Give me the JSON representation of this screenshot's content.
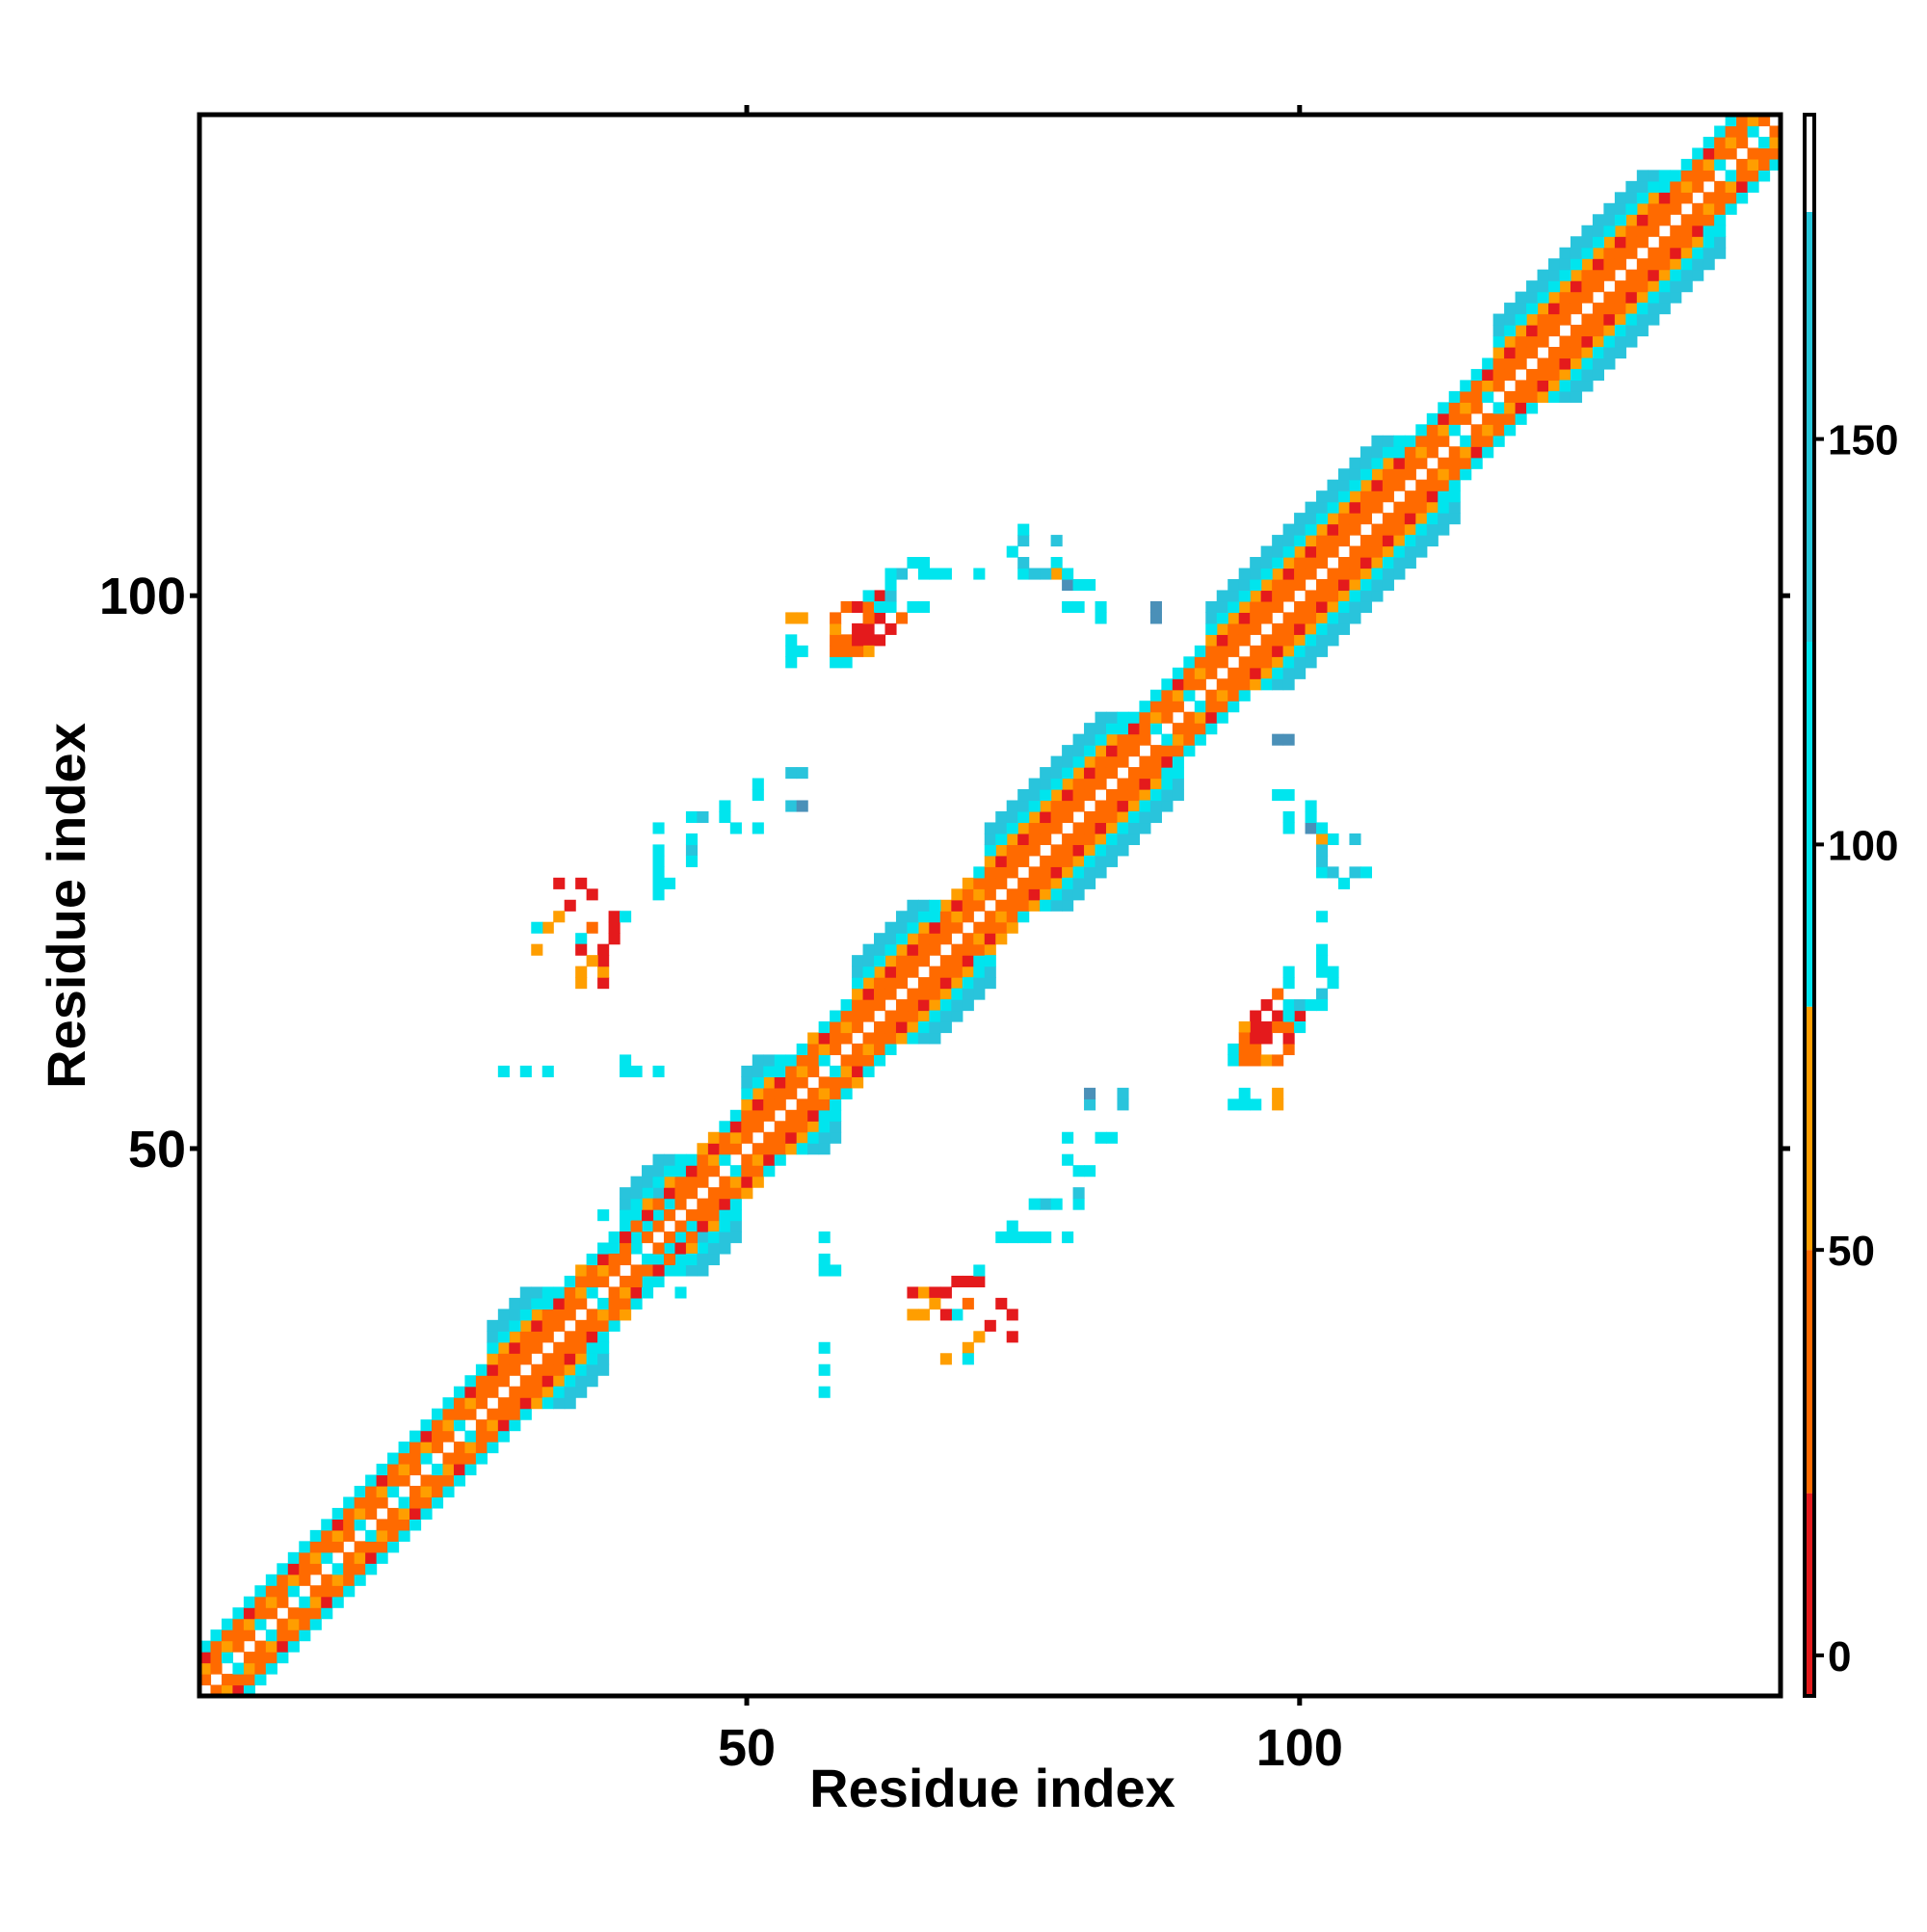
{
  "chart_data": {
    "type": "heatmap",
    "title": "",
    "xlabel": "Residue index",
    "ylabel": "Residue index",
    "xlim": [
      0.5,
      143.5
    ],
    "ylim": [
      0.5,
      143.5
    ],
    "x_ticks": [
      50,
      100
    ],
    "x_tick_labels": [
      "50",
      "100"
    ],
    "y_ticks": [
      50,
      100
    ],
    "y_tick_labels": [
      "50",
      "100"
    ],
    "grid": false,
    "legend": "colorbar-right",
    "colorbar": {
      "range": [
        -5,
        190
      ],
      "ticks": [
        0,
        50,
        100,
        150
      ],
      "tick_labels": [
        "0",
        "50",
        "100",
        "150"
      ],
      "bands": [
        {
          "from": -5,
          "to": 20,
          "color": "#e41a1c"
        },
        {
          "from": 20,
          "to": 50,
          "color": "#ff6a00"
        },
        {
          "from": 50,
          "to": 80,
          "color": "#ff9e00"
        },
        {
          "from": 80,
          "to": 125,
          "color": "#00e5ee"
        },
        {
          "from": 125,
          "to": 178,
          "color": "#26c6da"
        },
        {
          "from": 178,
          "to": 190,
          "color": "#ffffff"
        }
      ]
    },
    "colors": {
      "red": "#e41a1c",
      "orange": "#ff6a00",
      "amber": "#ff9e00",
      "cyan": "#00e5ee",
      "teal": "#29c4dc",
      "steel": "#4a90b8"
    },
    "diagonal": {
      "residue_range": [
        1,
        143
      ],
      "near_diagonal_offsets": [
        {
          "offset": 1,
          "color": "orange"
        },
        {
          "offset": 2,
          "color": "orange"
        },
        {
          "offset": 3,
          "color": "red"
        },
        {
          "offset": 4,
          "color": "amber"
        }
      ],
      "helix_segments": [
        {
          "start": 27,
          "end": 35
        },
        {
          "start": 39,
          "end": 47
        },
        {
          "start": 50,
          "end": 56
        },
        {
          "start": 60,
          "end": 70
        },
        {
          "start": 72,
          "end": 87
        },
        {
          "start": 92,
          "end": 112
        },
        {
          "start": 118,
          "end": 136
        }
      ]
    },
    "off_diagonal_contacts": [
      {
        "i": 33,
        "j": 74,
        "color": "red"
      },
      {
        "i": 35,
        "j": 74,
        "color": "red"
      },
      {
        "i": 36,
        "j": 73,
        "color": "red"
      },
      {
        "i": 34,
        "j": 72,
        "color": "red"
      },
      {
        "i": 33,
        "j": 71,
        "color": "amber"
      },
      {
        "i": 32,
        "j": 70,
        "color": "amber"
      },
      {
        "i": 36,
        "j": 70,
        "color": "orange"
      },
      {
        "i": 35,
        "j": 69,
        "color": "cyan"
      },
      {
        "i": 31,
        "j": 68,
        "color": "amber"
      },
      {
        "i": 31,
        "j": 70,
        "color": "cyan"
      },
      {
        "i": 35,
        "j": 68,
        "color": "red"
      },
      {
        "i": 42,
        "j": 79,
        "color": "cyan"
      },
      {
        "i": 42,
        "j": 76,
        "color": "cyan"
      },
      {
        "i": 43,
        "j": 74,
        "color": "cyan"
      },
      {
        "i": 45,
        "j": 80,
        "color": "cyan"
      },
      {
        "i": 46,
        "j": 80,
        "color": "teal"
      },
      {
        "i": 45,
        "j": 77,
        "color": "teal"
      },
      {
        "i": 49,
        "j": 79,
        "color": "cyan"
      },
      {
        "i": 48,
        "j": 81,
        "color": "cyan"
      },
      {
        "i": 54,
        "j": 81,
        "color": "teal"
      },
      {
        "i": 55,
        "j": 81,
        "color": "steel"
      },
      {
        "i": 28,
        "j": 57,
        "color": "cyan"
      },
      {
        "i": 30,
        "j": 57,
        "color": "cyan"
      },
      {
        "i": 32,
        "j": 57,
        "color": "cyan"
      },
      {
        "i": 59,
        "j": 99,
        "color": "orange"
      },
      {
        "i": 60,
        "j": 99,
        "color": "red"
      },
      {
        "i": 61,
        "j": 99,
        "color": "orange"
      },
      {
        "i": 62,
        "j": 100,
        "color": "red"
      },
      {
        "i": 63,
        "j": 99,
        "color": "cyan"
      },
      {
        "i": 64,
        "j": 98,
        "color": "orange"
      },
      {
        "i": 63,
        "j": 97,
        "color": "red"
      },
      {
        "i": 62,
        "j": 96,
        "color": "red"
      },
      {
        "i": 61,
        "j": 96,
        "color": "red"
      },
      {
        "i": 60,
        "j": 97,
        "color": "red"
      },
      {
        "i": 59,
        "j": 96,
        "color": "orange"
      },
      {
        "i": 61,
        "j": 95,
        "color": "amber"
      },
      {
        "i": 60,
        "j": 95,
        "color": "orange"
      },
      {
        "i": 59,
        "j": 94,
        "color": "cyan"
      },
      {
        "i": 55,
        "j": 98,
        "color": "amber"
      },
      {
        "i": 55,
        "j": 95,
        "color": "cyan"
      },
      {
        "i": 63,
        "j": 100,
        "color": "teal"
      },
      {
        "i": 65,
        "j": 99,
        "color": "cyan"
      },
      {
        "i": 66,
        "j": 99,
        "color": "cyan"
      },
      {
        "i": 64,
        "j": 102,
        "color": "teal"
      },
      {
        "i": 67,
        "j": 102,
        "color": "cyan"
      },
      {
        "i": 68,
        "j": 102,
        "color": "cyan"
      },
      {
        "i": 71,
        "j": 102,
        "color": "cyan"
      },
      {
        "i": 75,
        "j": 102,
        "color": "cyan"
      },
      {
        "i": 76,
        "j": 102,
        "color": "teal"
      },
      {
        "i": 75,
        "j": 105,
        "color": "teal"
      },
      {
        "i": 78,
        "j": 105,
        "color": "teal"
      },
      {
        "i": 78,
        "j": 103,
        "color": "cyan"
      },
      {
        "i": 78,
        "j": 102,
        "color": "amber"
      },
      {
        "i": 79,
        "j": 101,
        "color": "steel"
      },
      {
        "i": 80,
        "j": 101,
        "color": "cyan"
      },
      {
        "i": 81,
        "j": 101,
        "color": "cyan"
      },
      {
        "i": 79,
        "j": 99,
        "color": "cyan"
      },
      {
        "i": 80,
        "j": 99,
        "color": "cyan"
      },
      {
        "i": 82,
        "j": 99,
        "color": "cyan"
      },
      {
        "i": 82,
        "j": 98,
        "color": "cyan"
      },
      {
        "i": 87,
        "j": 98,
        "color": "steel"
      },
      {
        "i": 37,
        "j": 44,
        "color": "cyan"
      },
      {
        "i": 38,
        "j": 41,
        "color": "cyan"
      },
      {
        "i": 40,
        "j": 41,
        "color": "cyan"
      },
      {
        "i": 42,
        "j": 40,
        "color": "cyan"
      },
      {
        "i": 43,
        "j": 41,
        "color": "cyan"
      },
      {
        "i": 46,
        "j": 42,
        "color": "teal"
      },
      {
        "i": 43,
        "j": 39,
        "color": "cyan"
      },
      {
        "i": 44,
        "j": 40,
        "color": "cyan"
      },
      {
        "i": 44,
        "j": 42,
        "color": "cyan"
      },
      {
        "i": 46,
        "j": 41,
        "color": "cyan"
      },
      {
        "i": 45,
        "j": 43,
        "color": "cyan"
      },
      {
        "i": 57,
        "j": 39,
        "color": "cyan"
      },
      {
        "i": 57,
        "j": 40,
        "color": "cyan"
      },
      {
        "i": 57,
        "j": 42,
        "color": "cyan"
      },
      {
        "i": 58,
        "j": 39,
        "color": "cyan"
      },
      {
        "i": 65,
        "j": 37,
        "color": "red"
      },
      {
        "i": 66,
        "j": 37,
        "color": "amber"
      },
      {
        "i": 67,
        "j": 37,
        "color": "red"
      },
      {
        "i": 68,
        "j": 37,
        "color": "red"
      },
      {
        "i": 69,
        "j": 38,
        "color": "red"
      },
      {
        "i": 70,
        "j": 38,
        "color": "red"
      },
      {
        "i": 71,
        "j": 38,
        "color": "red"
      },
      {
        "i": 67,
        "j": 36,
        "color": "amber"
      },
      {
        "i": 65,
        "j": 35,
        "color": "amber"
      },
      {
        "i": 66,
        "j": 35,
        "color": "amber"
      },
      {
        "i": 68,
        "j": 35,
        "color": "amber"
      },
      {
        "i": 71,
        "j": 39,
        "color": "cyan"
      },
      {
        "i": 73,
        "j": 42,
        "color": "cyan"
      },
      {
        "i": 74,
        "j": 42,
        "color": "cyan"
      },
      {
        "i": 75,
        "j": 42,
        "color": "cyan"
      },
      {
        "i": 77,
        "j": 42,
        "color": "cyan"
      },
      {
        "i": 76,
        "j": 45,
        "color": "cyan"
      },
      {
        "i": 77,
        "j": 45,
        "color": "cyan"
      },
      {
        "i": 78,
        "j": 45,
        "color": "cyan"
      },
      {
        "i": 80,
        "j": 48,
        "color": "cyan"
      },
      {
        "i": 81,
        "j": 48,
        "color": "cyan"
      },
      {
        "i": 79,
        "j": 51,
        "color": "cyan"
      },
      {
        "i": 82,
        "j": 51,
        "color": "cyan"
      },
      {
        "i": 83,
        "j": 51,
        "color": "cyan"
      },
      {
        "i": 84,
        "j": 54,
        "color": "teal"
      },
      {
        "i": 84,
        "j": 55,
        "color": "teal"
      },
      {
        "i": 94,
        "j": 54,
        "color": "cyan"
      },
      {
        "i": 95,
        "j": 54,
        "color": "cyan"
      },
      {
        "i": 96,
        "j": 54,
        "color": "cyan"
      },
      {
        "i": 98,
        "j": 54,
        "color": "amber"
      },
      {
        "i": 94,
        "j": 58,
        "color": "cyan"
      },
      {
        "i": 95,
        "j": 58,
        "color": "orange"
      },
      {
        "i": 96,
        "j": 58,
        "color": "orange"
      },
      {
        "i": 97,
        "j": 58,
        "color": "amber"
      },
      {
        "i": 98,
        "j": 58,
        "color": "orange"
      },
      {
        "i": 95,
        "j": 59,
        "color": "orange"
      },
      {
        "i": 96,
        "j": 60,
        "color": "red"
      },
      {
        "i": 97,
        "j": 61,
        "color": "red"
      },
      {
        "i": 98,
        "j": 62,
        "color": "red"
      },
      {
        "i": 99,
        "j": 61,
        "color": "red"
      },
      {
        "i": 100,
        "j": 61,
        "color": "cyan"
      },
      {
        "i": 99,
        "j": 62,
        "color": "cyan"
      },
      {
        "i": 97,
        "j": 60,
        "color": "amber"
      },
      {
        "i": 98,
        "j": 61,
        "color": "orange"
      },
      {
        "i": 101,
        "j": 63,
        "color": "cyan"
      },
      {
        "i": 102,
        "j": 63,
        "color": "cyan"
      },
      {
        "i": 102,
        "j": 66,
        "color": "cyan"
      },
      {
        "i": 103,
        "j": 65,
        "color": "cyan"
      },
      {
        "i": 103,
        "j": 66,
        "color": "cyan"
      },
      {
        "i": 102,
        "j": 68,
        "color": "teal"
      },
      {
        "i": 102,
        "j": 71,
        "color": "cyan"
      },
      {
        "i": 104,
        "j": 74,
        "color": "cyan"
      },
      {
        "i": 103,
        "j": 75,
        "color": "teal"
      },
      {
        "i": 105,
        "j": 75,
        "color": "cyan"
      },
      {
        "i": 106,
        "j": 75,
        "color": "cyan"
      },
      {
        "i": 102,
        "j": 77,
        "color": "teal"
      },
      {
        "i": 103,
        "j": 78,
        "color": "cyan"
      },
      {
        "i": 101,
        "j": 79,
        "color": "cyan"
      },
      {
        "i": 102,
        "j": 79,
        "color": "cyan"
      },
      {
        "i": 98,
        "j": 87,
        "color": "cyan"
      },
      {
        "i": 99,
        "j": 87,
        "color": "steel"
      }
    ]
  }
}
